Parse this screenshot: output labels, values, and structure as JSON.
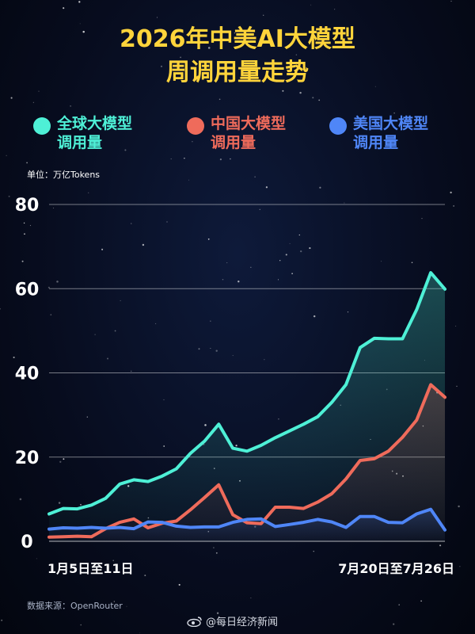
{
  "title": {
    "line1": "2026年中美AI大模型",
    "line2": "周调用量走势"
  },
  "unit_label": "单位：万亿Tokens",
  "source_label": "数据来源：OpenRouter",
  "watermark": "@每日经济新闻",
  "legend": [
    {
      "key": "global",
      "line1": "全球大模型",
      "line2": "调用量",
      "color": "#4ef0d6"
    },
    {
      "key": "china",
      "line1": "中国大模型",
      "line2": "调用量",
      "color": "#ef6b5b"
    },
    {
      "key": "us",
      "line1": "美国大模型",
      "line2": "调用量",
      "color": "#4f86f7"
    }
  ],
  "chart_data": {
    "type": "line",
    "title": "2026年中美AI大模型周调用量走势",
    "ylabel": "单位：万亿Tokens",
    "ylim": [
      0,
      80
    ],
    "yticks": [
      0,
      20,
      40,
      60,
      80
    ],
    "xtick_labels": [
      {
        "index": 0,
        "label": "1月5日至11日"
      },
      {
        "index": 29,
        "label": "7月20日至7月26日"
      }
    ],
    "grid": true,
    "series": [
      {
        "name": "全球大模型调用量",
        "color": "#4ef0d6",
        "values": [
          6.5,
          7.8,
          7.7,
          8.6,
          10.2,
          13.6,
          14.6,
          14.2,
          15.5,
          17.2,
          20.9,
          23.8,
          27.8,
          22.1,
          21.4,
          22.8,
          24.6,
          26.2,
          27.8,
          29.6,
          33,
          37.2,
          46,
          48.2,
          48.1,
          48.1,
          55,
          63.8,
          59.9
        ]
      },
      {
        "name": "中国大模型调用量",
        "color": "#ef6b5b",
        "values": [
          1,
          1.1,
          1.2,
          1.1,
          3,
          4.5,
          5.3,
          3.2,
          4.3,
          4.8,
          7.5,
          10.4,
          13.4,
          6.3,
          4.4,
          4.2,
          8.1,
          8.1,
          7.8,
          9.3,
          11.3,
          14.8,
          19.2,
          19.6,
          21.4,
          24.7,
          28.8,
          37.2,
          34.2
        ]
      },
      {
        "name": "美国大模型调用量",
        "color": "#4f86f7",
        "values": [
          2.9,
          3.2,
          3.1,
          3.3,
          3.1,
          3.3,
          3,
          4.6,
          4.5,
          3.6,
          3.3,
          3.4,
          3.4,
          4.5,
          5.2,
          5.3,
          3.5,
          4,
          4.5,
          5.2,
          4.6,
          3.3,
          5.9,
          5.9,
          4.5,
          4.4,
          6.5,
          7.6,
          2.7
        ]
      }
    ]
  }
}
